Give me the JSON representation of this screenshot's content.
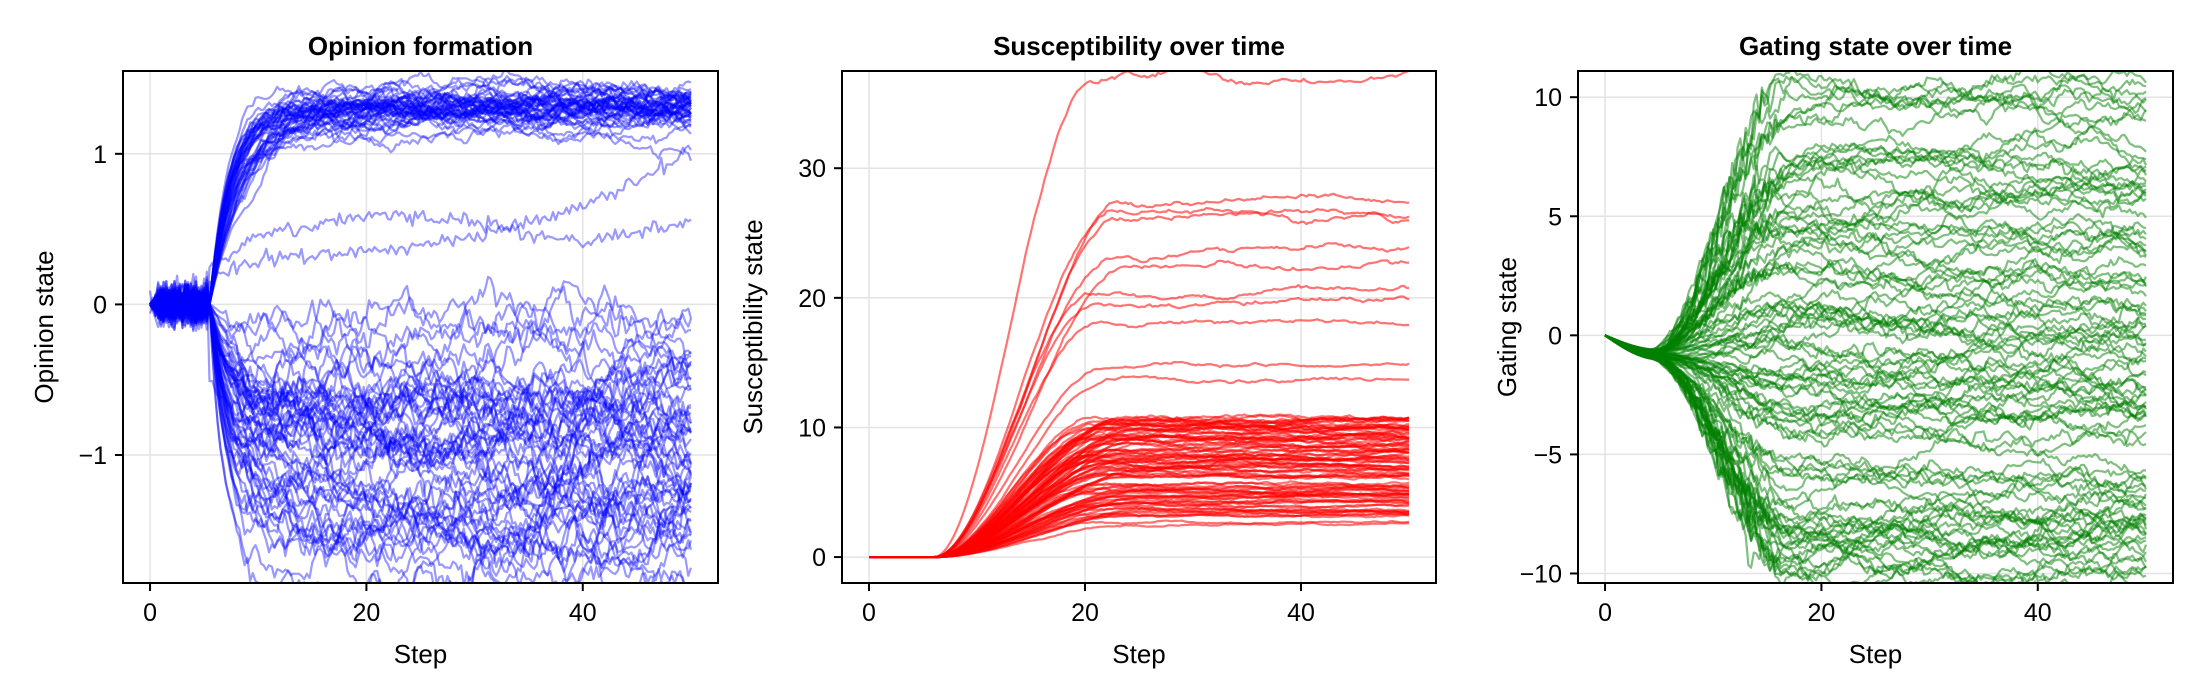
{
  "chart_data": [
    {
      "type": "line",
      "title": "Opinion formation",
      "xlabel": "Step",
      "ylabel": "Opinion state",
      "xlim": [
        -2.5,
        52.5
      ],
      "ylim": [
        -1.85,
        1.55
      ],
      "xticks": [
        {
          "v": 0,
          "label": "0"
        },
        {
          "v": 20,
          "label": "20"
        },
        {
          "v": 40,
          "label": "40"
        }
      ],
      "yticks": [
        {
          "v": -1,
          "label": "−1"
        },
        {
          "v": 0,
          "label": "0"
        },
        {
          "v": 1,
          "label": "1"
        }
      ],
      "grid": true,
      "color": "#0000ff",
      "opacity": 0.4,
      "steps": 50,
      "series_count": 100,
      "distribution": {
        "split_step": 5.5,
        "upper_group": {
          "fraction": 0.45,
          "plateau": 1.3,
          "plateau_spread": 0.07
        },
        "lower_group": {
          "fraction": 0.55,
          "range": [
            -1.75,
            -0.1
          ]
        },
        "pre_split_noise": 0.06
      },
      "highlighted_series": [
        {
          "x": [
            0,
            10,
            20,
            30,
            40,
            50
          ],
          "y": [
            0,
            0.45,
            0.6,
            0.55,
            0.4,
            0.55
          ]
        },
        {
          "x": [
            0,
            10,
            20,
            30,
            40,
            50
          ],
          "y": [
            0,
            0.3,
            0.35,
            0.45,
            0.65,
            1.0
          ]
        },
        {
          "x": [
            0,
            10,
            20,
            30,
            40,
            50
          ],
          "y": [
            0,
            -0.9,
            -1.3,
            -1.45,
            -1.65,
            -1.85
          ]
        }
      ]
    },
    {
      "type": "line",
      "title": "Susceptibility over time",
      "xlabel": "Step",
      "ylabel": "Susceptibility state",
      "xlim": [
        -2.5,
        52.5
      ],
      "ylim": [
        -2,
        37.5
      ],
      "xticks": [
        {
          "v": 0,
          "label": "0"
        },
        {
          "v": 20,
          "label": "20"
        },
        {
          "v": 40,
          "label": "40"
        }
      ],
      "yticks": [
        {
          "v": 0,
          "label": "0"
        },
        {
          "v": 10,
          "label": "10"
        },
        {
          "v": 20,
          "label": "20"
        },
        {
          "v": 30,
          "label": "30"
        }
      ],
      "grid": true,
      "color": "#ff0000",
      "opacity": 0.55,
      "steps": 50,
      "series_count": 100,
      "distribution": {
        "onset_step": 6,
        "plateau_values": [
          37,
          27,
          26.5,
          26,
          23.5,
          22.5,
          20.5,
          19.5,
          18,
          14.5,
          14
        ],
        "bulk_range": [
          2.5,
          11
        ],
        "saturation_step": 20
      }
    },
    {
      "type": "line",
      "title": "Gating state over time",
      "xlabel": "Step",
      "ylabel": "Gating state",
      "xlim": [
        -2.5,
        52.5
      ],
      "ylim": [
        -10.4,
        11.1
      ],
      "xticks": [
        {
          "v": 0,
          "label": "0"
        },
        {
          "v": 20,
          "label": "20"
        },
        {
          "v": 40,
          "label": "40"
        }
      ],
      "yticks": [
        {
          "v": -10,
          "label": "−10"
        },
        {
          "v": -5,
          "label": "−5"
        },
        {
          "v": 0,
          "label": "0"
        },
        {
          "v": 5,
          "label": "5"
        },
        {
          "v": 10,
          "label": "10"
        }
      ],
      "grid": true,
      "color": "#008000",
      "opacity": 0.5,
      "steps": 50,
      "series_count": 100,
      "distribution": {
        "onset_step": 4,
        "range": [
          -10.2,
          10.5
        ],
        "saturation_step": 17
      }
    }
  ]
}
